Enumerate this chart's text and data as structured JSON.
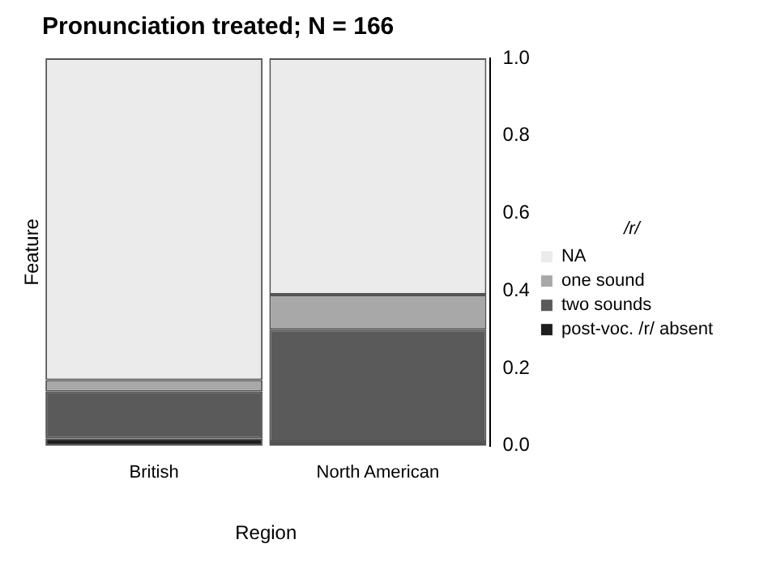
{
  "chart_data": {
    "type": "bar",
    "title": "Pronunciation treated; N = 166",
    "xlabel": "Region",
    "ylabel": "Feature",
    "legend_title": "/r/",
    "categories": [
      "British",
      "North American"
    ],
    "stacked": true,
    "series": [
      {
        "name": "post-voc. /r/ absent",
        "color": "#1e1e1e",
        "values": [
          0.02,
          0.01
        ]
      },
      {
        "name": "two sounds",
        "color": "#5a5a5a",
        "values": [
          0.12,
          0.29
        ]
      },
      {
        "name": "one sound",
        "color": "#a8a8a8",
        "values": [
          0.03,
          0.09
        ]
      },
      {
        "name": "NA",
        "color": "#ebebeb",
        "values": [
          0.83,
          0.61
        ]
      }
    ],
    "ylim": [
      0,
      1
    ],
    "yticks": [
      {
        "value": 0,
        "label": "0.0"
      },
      0.2,
      0.4,
      0.6,
      0.8,
      {
        "value": 1,
        "label": "1.0"
      }
    ],
    "grid": false,
    "legend": "right"
  }
}
